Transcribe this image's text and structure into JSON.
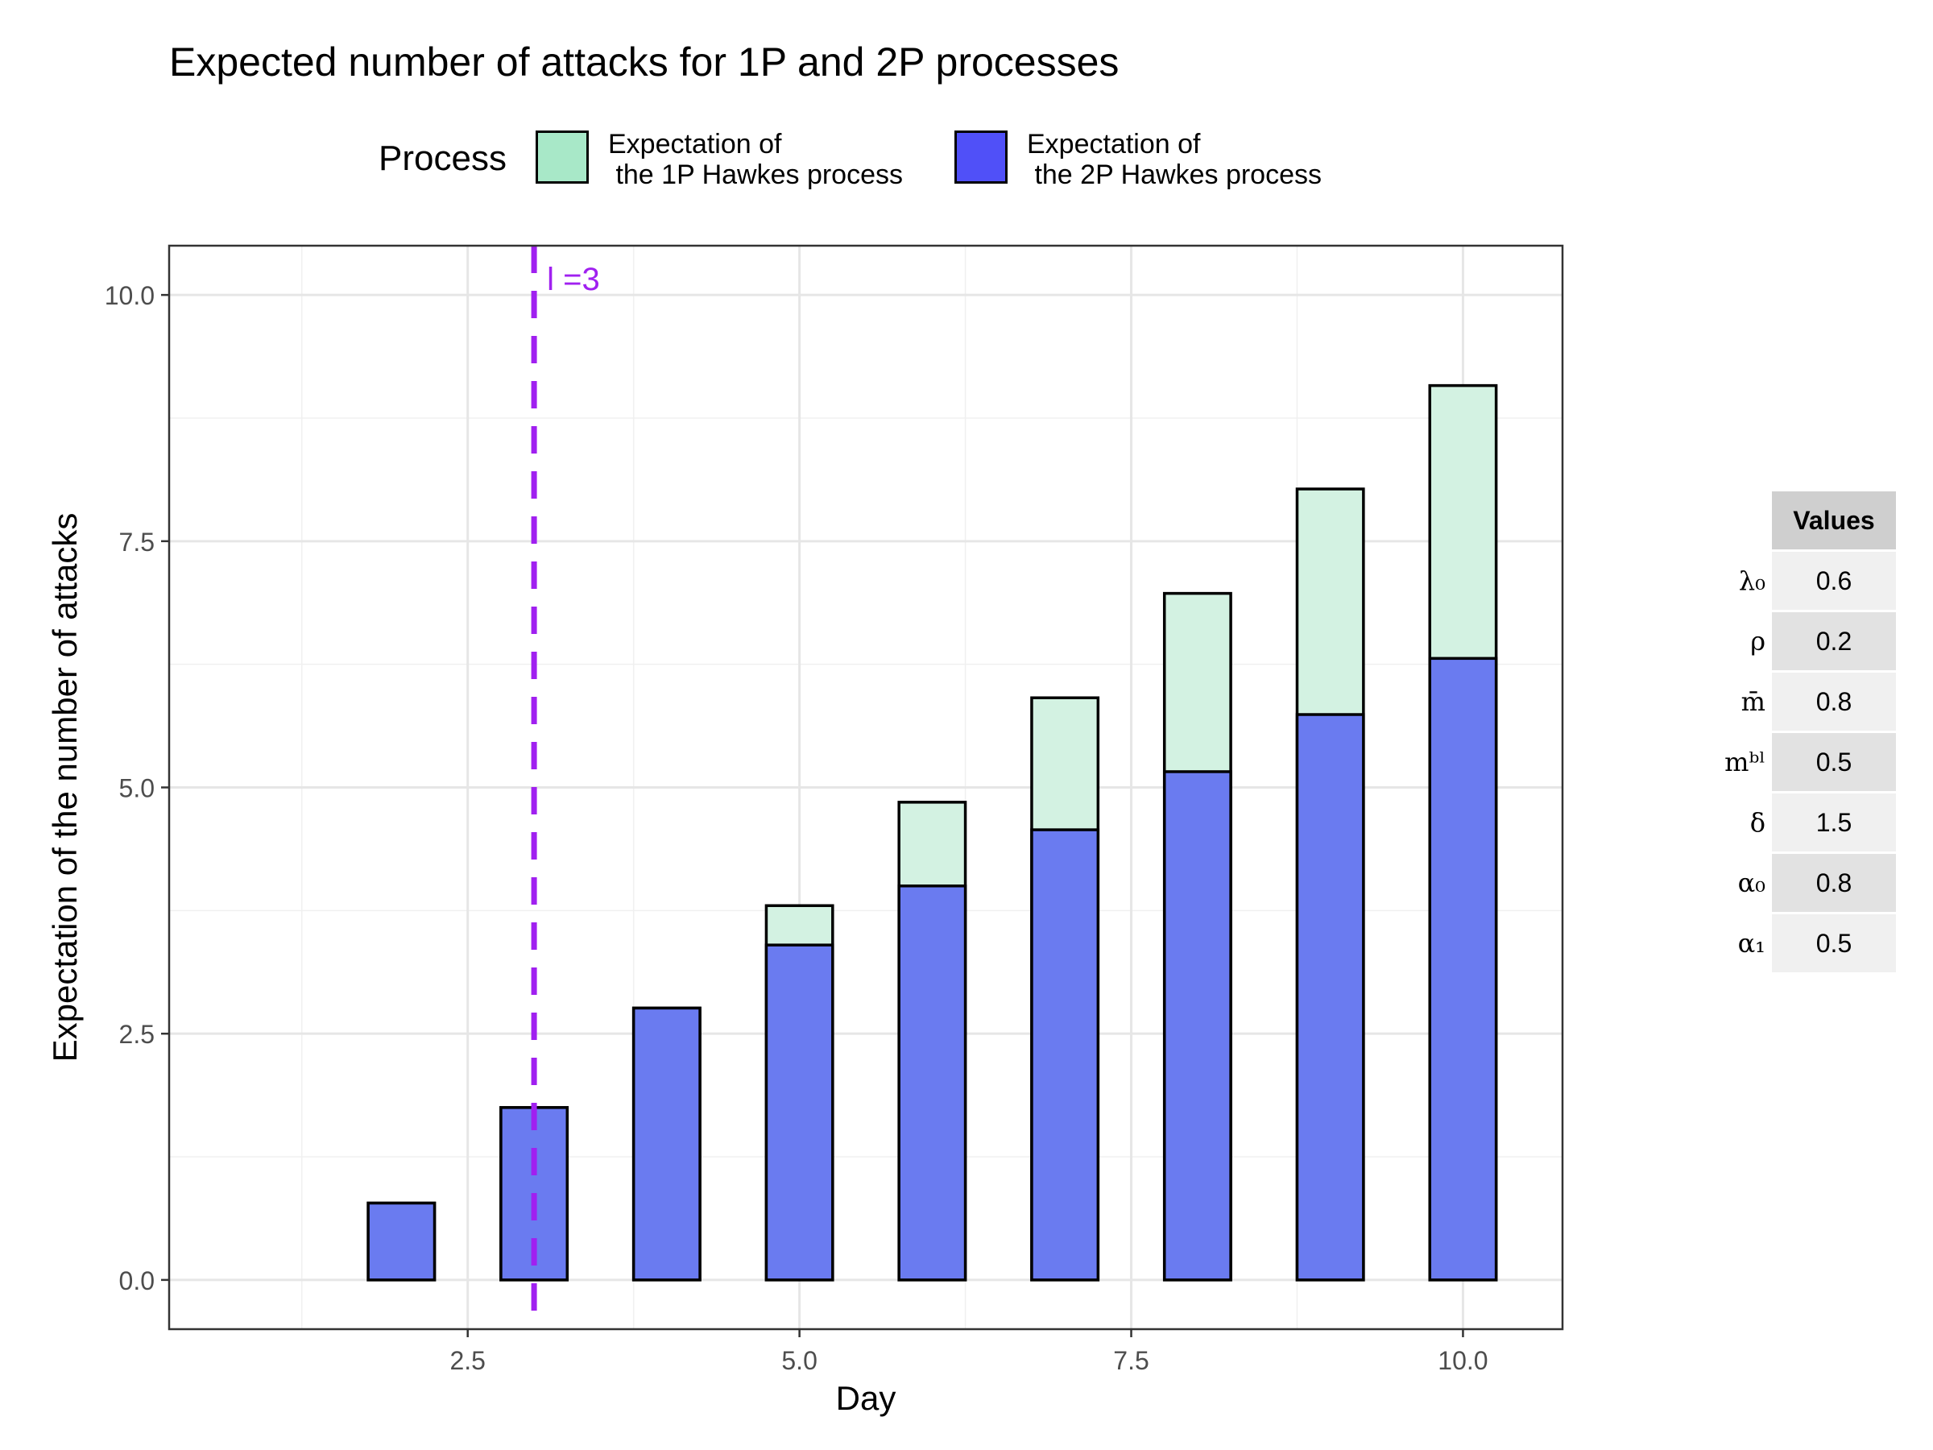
{
  "chart_data": {
    "type": "bar",
    "title": "Expected number of attacks for 1P and 2P processes",
    "xlabel": "Day",
    "ylabel": "Expectation of the number of attacks",
    "xlim": [
      0.25,
      10.75
    ],
    "ylim": [
      -0.5,
      10.5
    ],
    "x_ticks": [
      "2.5",
      "5.0",
      "7.5",
      "10.0"
    ],
    "x_tick_values": [
      2.5,
      5.0,
      7.5,
      10.0
    ],
    "y_ticks": [
      "0.0",
      "2.5",
      "5.0",
      "7.5",
      "10.0"
    ],
    "y_tick_values": [
      0,
      2.5,
      5,
      7.5,
      10
    ],
    "grid": true,
    "legend_title": "Process",
    "legend_position": "top",
    "categories": [
      1,
      2,
      3,
      4,
      5,
      6,
      7,
      8,
      9,
      10
    ],
    "series": [
      {
        "name": "Expectation of\n the 1P Hawkes process",
        "color": "#a8e8c8",
        "fill_color": "#d3f2e2",
        "values": [
          0.0,
          0.78,
          1.75,
          2.76,
          3.8,
          4.85,
          5.91,
          6.97,
          8.03,
          9.08
        ]
      },
      {
        "name": "Expectation of\n the 2P Hawkes process",
        "color": "#5050f8",
        "fill_color": "#6a7bf0",
        "values": [
          0.0,
          0.78,
          1.75,
          2.76,
          3.4,
          4.0,
          4.57,
          5.16,
          5.74,
          6.31
        ]
      }
    ],
    "vline": {
      "x": 3,
      "label": "l =3",
      "color": "#a020f0"
    }
  },
  "parameters": {
    "header": "Values",
    "rows": [
      {
        "label": "λ₀",
        "value": "0.6"
      },
      {
        "label": "ρ",
        "value": "0.2"
      },
      {
        "label": "m̄",
        "value": "0.8"
      },
      {
        "label": "mᵇˡ",
        "value": "0.5"
      },
      {
        "label": "δ",
        "value": "1.5"
      },
      {
        "label": "α₀",
        "value": "0.8"
      },
      {
        "label": "α₁",
        "value": "0.5"
      }
    ]
  }
}
